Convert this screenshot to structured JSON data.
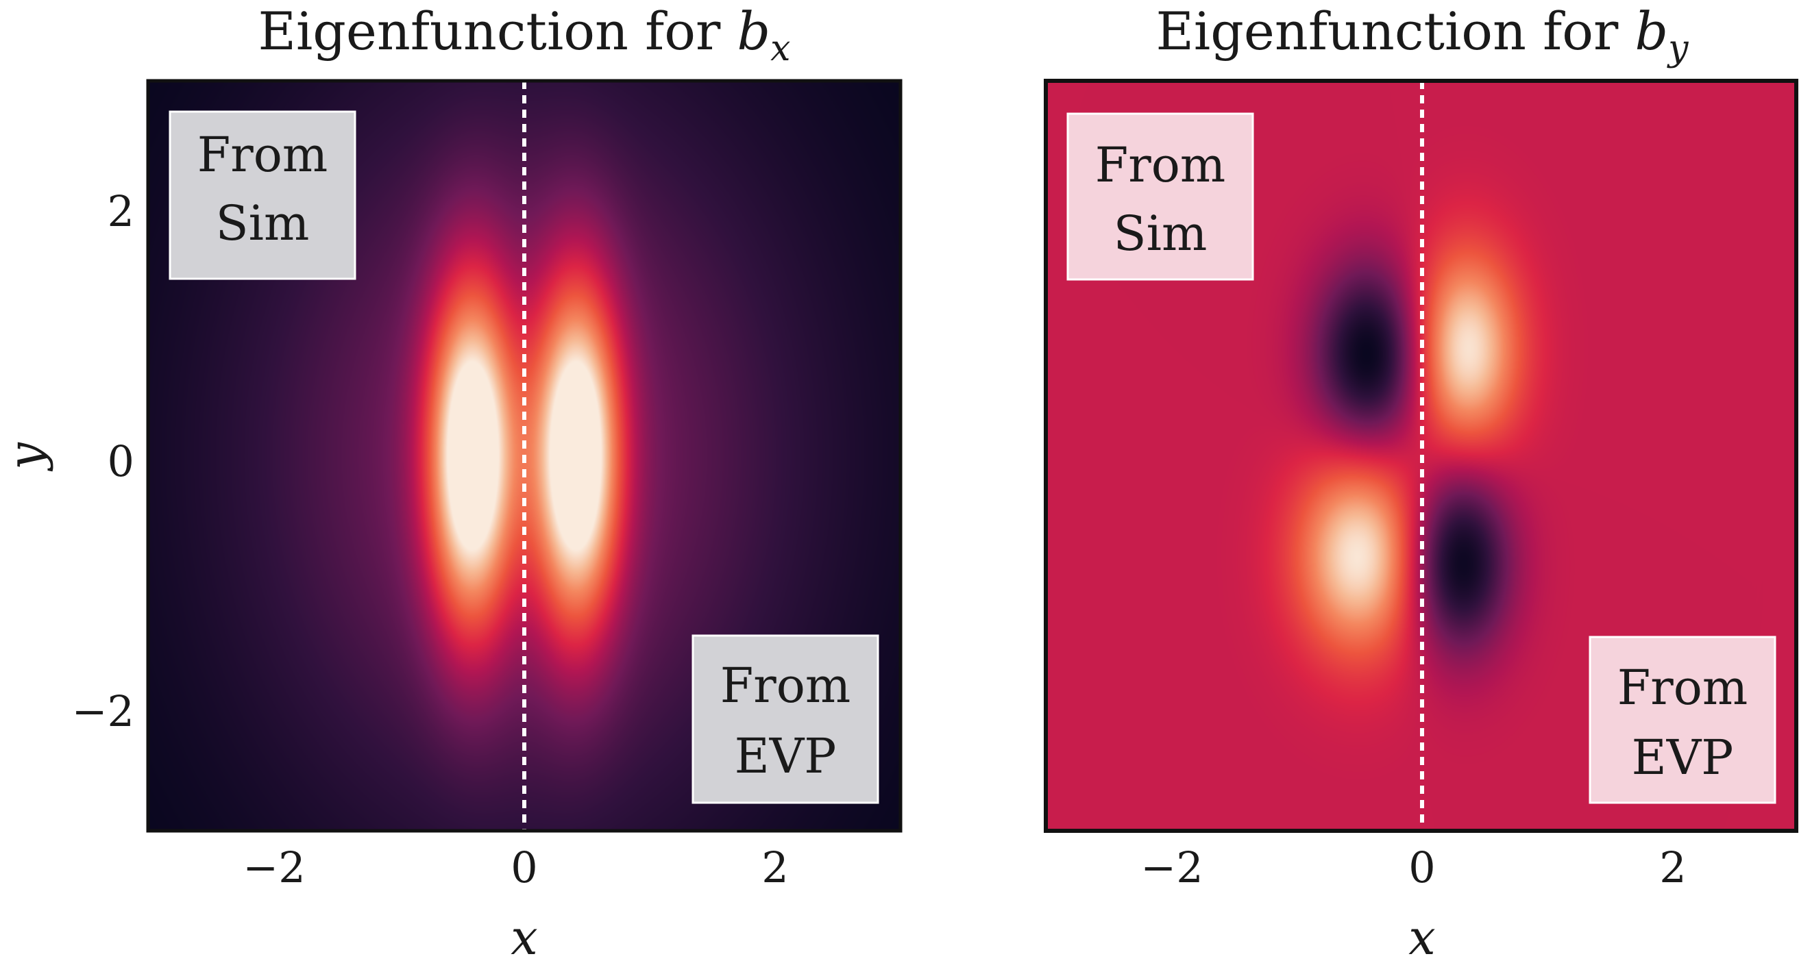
{
  "chart_data": [
    {
      "type": "heatmap",
      "title_prefix": "Eigenfunction for ",
      "title_symbol": "b",
      "title_subscript": "x",
      "xlabel": "x",
      "ylabel": "y",
      "xlim": [
        -3,
        3
      ],
      "ylim": [
        -3,
        3
      ],
      "x_ticks": [
        -2,
        0,
        2
      ],
      "y_ticks": [
        -2,
        0,
        2
      ],
      "x_tick_labels": [
        "−2",
        "0",
        "2"
      ],
      "y_tick_labels": [
        "2",
        "0",
        "−2"
      ],
      "divider_x": 0,
      "left_half_label": [
        "From",
        "Sim"
      ],
      "right_half_label": [
        "From",
        "EVP"
      ],
      "colormap": "rocket",
      "label_box_color": "#d2d2d6",
      "field": "symmetric",
      "lobes": [
        {
          "x": -0.42,
          "y": 0.0,
          "sx": 0.24,
          "sy": 0.95,
          "amp": 1.0
        },
        {
          "x": 0.42,
          "y": 0.0,
          "sx": 0.24,
          "sy": 0.95,
          "amp": 1.0
        }
      ],
      "halo": {
        "sx": 1.45,
        "sy": 2.0,
        "amp": 0.3
      }
    },
    {
      "type": "heatmap",
      "title_prefix": "Eigenfunction for ",
      "title_symbol": "b",
      "title_subscript": "y",
      "xlabel": "x",
      "x_ticks": [
        -2,
        0,
        2
      ],
      "x_tick_labels": [
        "−2",
        "0",
        "2"
      ],
      "xlim": [
        -3,
        3
      ],
      "ylim": [
        -3,
        3
      ],
      "divider_x": 0,
      "left_half_label": [
        "From",
        "Sim"
      ],
      "right_half_label": [
        "From",
        "EVP"
      ],
      "colormap": "rocket",
      "label_box_color": "#f5d3dc",
      "background_value": 0.5,
      "lobes": [
        {
          "x": -0.42,
          "y": 0.8,
          "sx": 0.3,
          "sy": 0.5,
          "amp": -0.5
        },
        {
          "x": 0.35,
          "y": 0.85,
          "sx": 0.3,
          "sy": 0.55,
          "amp": 0.5
        },
        {
          "x": -0.5,
          "y": -0.8,
          "sx": 0.35,
          "sy": 0.55,
          "amp": 0.5
        },
        {
          "x": 0.3,
          "y": -0.85,
          "sx": 0.28,
          "sy": 0.5,
          "amp": -0.5
        }
      ]
    }
  ]
}
